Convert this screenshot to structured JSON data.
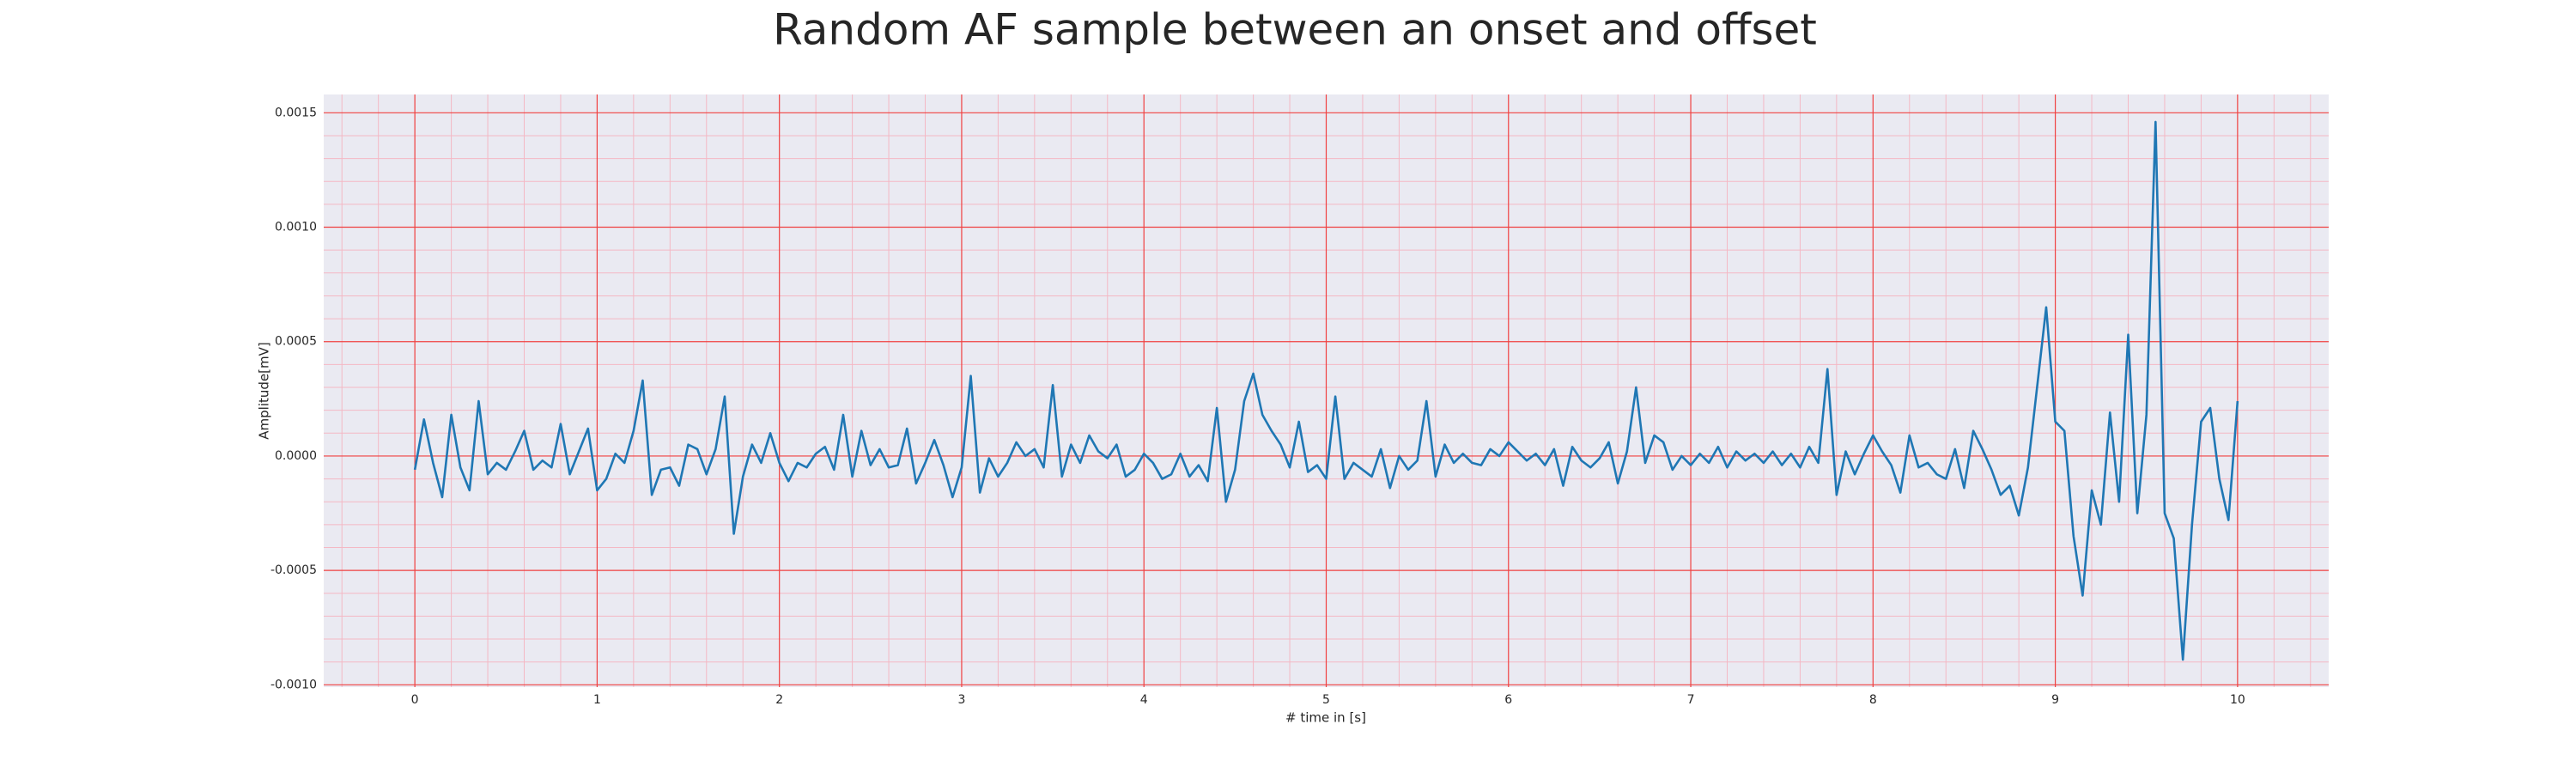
{
  "chart_data": {
    "type": "line",
    "title": "Random AF sample between an onset and offset",
    "xlabel": "# time in [s]",
    "ylabel": "Amplitude[mV]",
    "xlim": [
      -0.5,
      10.5
    ],
    "ylim": [
      -0.00101,
      0.00158
    ],
    "xticks": [
      0,
      1,
      2,
      3,
      4,
      5,
      6,
      7,
      8,
      9,
      10
    ],
    "yticks": [
      {
        "value": -0.001,
        "label": "-0.0010"
      },
      {
        "value": -0.0005,
        "label": "-0.0005"
      },
      {
        "value": 0,
        "label": "0.0000"
      },
      {
        "value": 0.0005,
        "label": "0.0005"
      },
      {
        "value": 0.001,
        "label": "0.0010"
      },
      {
        "value": 0.0015,
        "label": "0.0015"
      }
    ],
    "xticks_minor": [
      -0.4,
      -0.2,
      0.2,
      0.4,
      0.6,
      0.8,
      1.2,
      1.4,
      1.6,
      1.8,
      2.2,
      2.4,
      2.6,
      2.8,
      3.2,
      3.4,
      3.6,
      3.8,
      4.2,
      4.4,
      4.6,
      4.8,
      5.2,
      5.4,
      5.6,
      5.8,
      6.2,
      6.4,
      6.6,
      6.8,
      7.2,
      7.4,
      7.6,
      7.8,
      8.2,
      8.4,
      8.6,
      8.8,
      9.2,
      9.4,
      9.6,
      9.8,
      10.2,
      10.4
    ],
    "yticks_minor": [
      -0.0009,
      -0.0008,
      -0.0007,
      -0.0006,
      -0.0004,
      -0.0003,
      -0.0002,
      -0.0001,
      0.0001,
      0.0002,
      0.0003,
      0.0004,
      0.0006,
      0.0007,
      0.0008,
      0.0009,
      0.0011,
      0.0012,
      0.0013,
      0.0014
    ],
    "grid": true,
    "grid_color": "#f04040",
    "minor_grid_color": "#f4b8c4",
    "background": "#eaeaf2",
    "x": [
      0,
      0.05,
      0.1,
      0.15,
      0.2,
      0.25,
      0.3,
      0.35,
      0.4,
      0.45,
      0.5,
      0.55,
      0.6,
      0.65,
      0.7,
      0.75,
      0.8,
      0.85,
      0.9,
      0.95,
      1,
      1.05,
      1.1,
      1.15,
      1.2,
      1.25,
      1.3,
      1.35,
      1.4,
      1.45,
      1.5,
      1.55,
      1.6,
      1.65,
      1.7,
      1.75,
      1.8,
      1.85,
      1.9,
      1.95,
      2,
      2.05,
      2.1,
      2.15,
      2.2,
      2.25,
      2.3,
      2.35,
      2.4,
      2.45,
      2.5,
      2.55,
      2.6,
      2.65,
      2.7,
      2.75,
      2.8,
      2.85,
      2.9,
      2.95,
      3,
      3.05,
      3.1,
      3.15,
      3.2,
      3.25,
      3.3,
      3.35,
      3.4,
      3.45,
      3.5,
      3.55,
      3.6,
      3.65,
      3.7,
      3.75,
      3.8,
      3.85,
      3.9,
      3.95,
      4,
      4.05,
      4.1,
      4.15,
      4.2,
      4.25,
      4.3,
      4.35,
      4.4,
      4.45,
      4.5,
      4.55,
      4.6,
      4.65,
      4.7,
      4.75,
      4.8,
      4.85,
      4.9,
      4.95,
      5,
      5.05,
      5.1,
      5.15,
      5.2,
      5.25,
      5.3,
      5.35,
      5.4,
      5.45,
      5.5,
      5.55,
      5.6,
      5.65,
      5.7,
      5.75,
      5.8,
      5.85,
      5.9,
      5.95,
      6,
      6.05,
      6.1,
      6.15,
      6.2,
      6.25,
      6.3,
      6.35,
      6.4,
      6.45,
      6.5,
      6.55,
      6.6,
      6.65,
      6.7,
      6.75,
      6.8,
      6.85,
      6.9,
      6.95,
      7,
      7.05,
      7.1,
      7.15,
      7.2,
      7.25,
      7.3,
      7.35,
      7.4,
      7.45,
      7.5,
      7.55,
      7.6,
      7.65,
      7.7,
      7.75,
      7.8,
      7.85,
      7.9,
      7.95,
      8,
      8.05,
      8.1,
      8.15,
      8.2,
      8.25,
      8.3,
      8.35,
      8.4,
      8.45,
      8.5,
      8.55,
      8.6,
      8.65,
      8.7,
      8.75,
      8.8,
      8.85,
      8.9,
      8.95,
      9,
      9.05,
      9.1,
      9.15,
      9.2,
      9.25,
      9.3,
      9.35,
      9.4,
      9.45,
      9.5,
      9.55,
      9.6,
      9.65,
      9.7,
      9.75,
      9.8,
      9.85,
      9.9,
      9.95,
      10
    ],
    "series": [
      {
        "color": "#1f77b4",
        "values": [
          -6e-05,
          0.00016,
          -3e-05,
          -0.00018,
          0.00018,
          -5e-05,
          -0.00015,
          0.00024,
          -8e-05,
          -3e-05,
          -6e-05,
          2e-05,
          0.00011,
          -6e-05,
          -2e-05,
          -5e-05,
          0.00014,
          -8e-05,
          2e-05,
          0.00012,
          -0.00015,
          -0.0001,
          1e-05,
          -3e-05,
          0.00011,
          0.00033,
          -0.00017,
          -6e-05,
          -5e-05,
          -0.00013,
          5e-05,
          3e-05,
          -8e-05,
          3e-05,
          0.00026,
          -0.00034,
          -9e-05,
          5e-05,
          -3e-05,
          0.0001,
          -3e-05,
          -0.00011,
          -3e-05,
          -5e-05,
          1e-05,
          4e-05,
          -6e-05,
          0.00018,
          -9e-05,
          0.00011,
          -4e-05,
          3e-05,
          -5e-05,
          -4e-05,
          0.00012,
          -0.00012,
          -3e-05,
          7e-05,
          -4e-05,
          -0.00018,
          -5e-05,
          0.00035,
          -0.00016,
          -1e-05,
          -9e-05,
          -3e-05,
          6e-05,
          0,
          3e-05,
          -5e-05,
          0.00031,
          -9e-05,
          5e-05,
          -3e-05,
          9e-05,
          2e-05,
          -1e-05,
          5e-05,
          -9e-05,
          -6e-05,
          1e-05,
          -3e-05,
          -0.0001,
          -8e-05,
          1e-05,
          -9e-05,
          -4e-05,
          -0.00011,
          0.00021,
          -0.0002,
          -6e-05,
          0.00024,
          0.00036,
          0.00018,
          0.00011,
          5e-05,
          -5e-05,
          0.00015,
          -7e-05,
          -4e-05,
          -0.0001,
          0.00026,
          -0.0001,
          -3e-05,
          -6e-05,
          -9e-05,
          3e-05,
          -0.00014,
          0,
          -6e-05,
          -2e-05,
          0.00024,
          -9e-05,
          5e-05,
          -3e-05,
          1e-05,
          -3e-05,
          -4e-05,
          3e-05,
          0,
          6e-05,
          2e-05,
          -2e-05,
          1e-05,
          -4e-05,
          3e-05,
          -0.00013,
          4e-05,
          -2e-05,
          -5e-05,
          -1e-05,
          6e-05,
          -0.00012,
          2e-05,
          0.0003,
          -3e-05,
          9e-05,
          6e-05,
          -6e-05,
          0,
          -4e-05,
          1e-05,
          -3e-05,
          4e-05,
          -5e-05,
          2e-05,
          -2e-05,
          1e-05,
          -3e-05,
          2e-05,
          -4e-05,
          1e-05,
          -5e-05,
          4e-05,
          -3e-05,
          0.00038,
          -0.00017,
          2e-05,
          -8e-05,
          1e-05,
          9e-05,
          2e-05,
          -4e-05,
          -0.00016,
          9e-05,
          -5e-05,
          -3e-05,
          -8e-05,
          -0.0001,
          3e-05,
          -0.00014,
          0.00011,
          3e-05,
          -6e-05,
          -0.00017,
          -0.00013,
          -0.00026,
          -5e-05,
          0.0003,
          0.00065,
          0.00015,
          0.00011,
          -0.00035,
          -0.00061,
          -0.00015,
          -0.0003,
          0.00019,
          -0.0002,
          0.00053,
          -0.00025,
          0.00018,
          0.00146,
          -0.00025,
          -0.00036,
          -0.00089,
          -0.0003,
          0.00015,
          0.00021,
          -0.0001,
          -0.00028,
          0.00024
        ]
      }
    ]
  }
}
